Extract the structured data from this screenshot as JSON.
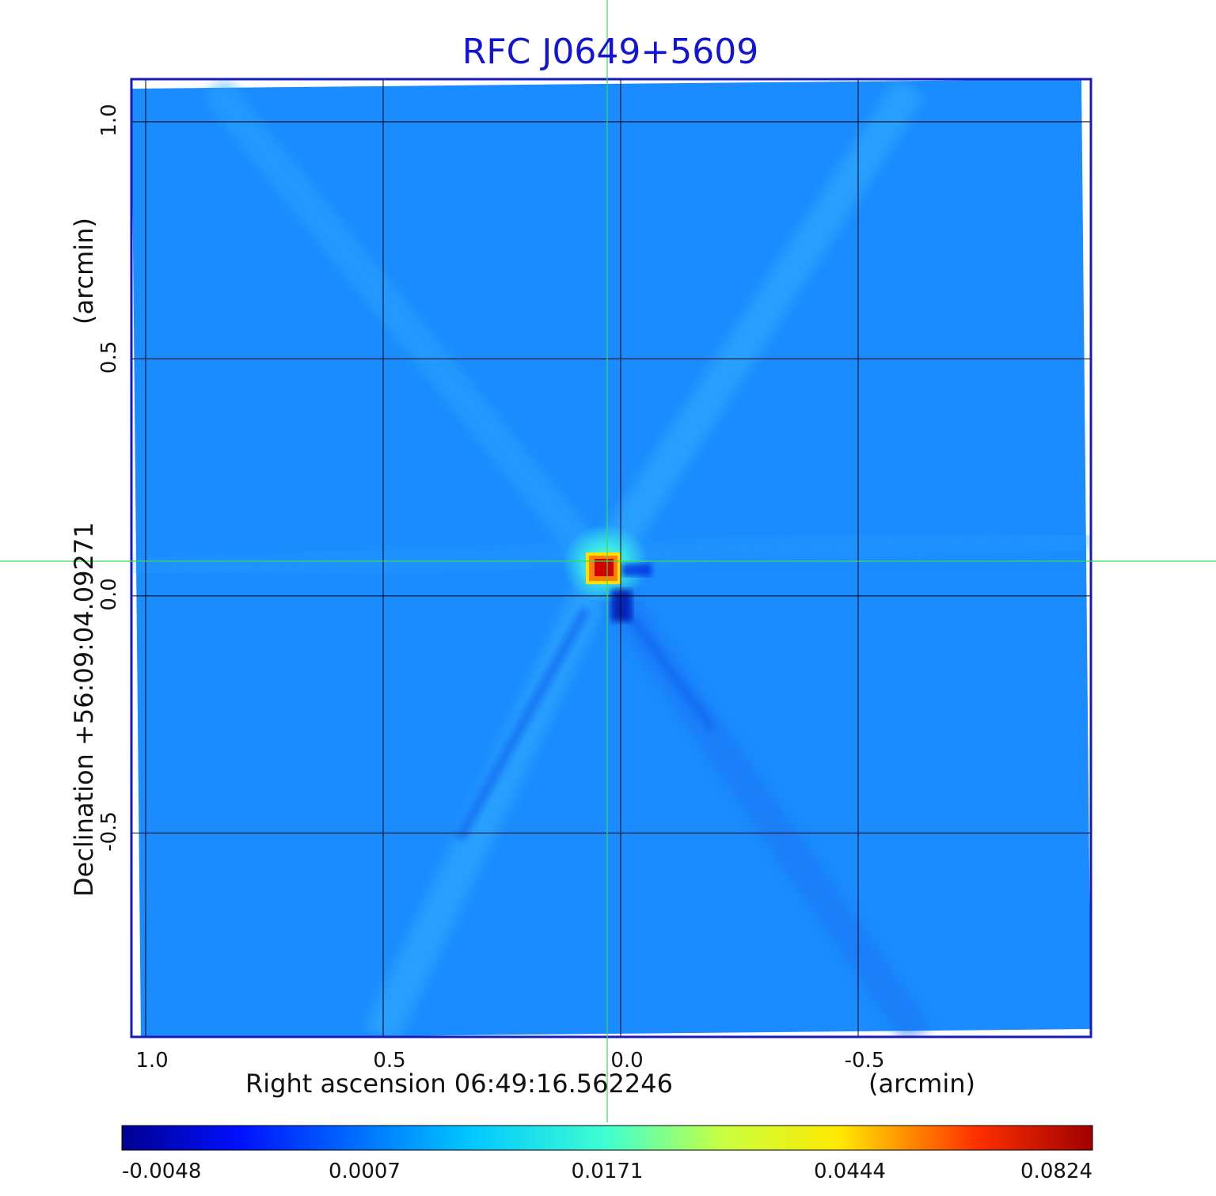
{
  "colors": {
    "title": "#1414d6",
    "frame": "#1a1ab8",
    "background_map": "#1a8cff",
    "grid": "#000000",
    "crosshair": "#33dd55"
  },
  "chart_data": {
    "type": "heatmap",
    "title": "RFC J0649+5609",
    "x_axis": {
      "label": "Right ascension  06:49:16.562246",
      "unit": "(arcmin)",
      "ticks": [
        "1.0",
        "0.5",
        "0.0",
        "-0.5"
      ],
      "tick_values": [
        1.0,
        0.5,
        0.0,
        -0.5
      ],
      "range": [
        1.03,
        -0.99
      ]
    },
    "y_axis": {
      "label": "Declination  +56:09:04.09271",
      "unit": "(arcmin)",
      "ticks": [
        "1.0",
        "0.5",
        "0.0",
        "-0.5"
      ],
      "tick_values": [
        1.0,
        0.5,
        0.0,
        -0.5
      ],
      "range": [
        -0.93,
        1.09
      ]
    },
    "grid": true,
    "crosshair": {
      "x": 0.03,
      "y": 0.07
    },
    "source_peak": {
      "x": 0.04,
      "y": 0.06,
      "value": 0.0824
    },
    "colorbar": {
      "ticks": [
        "-0.0048",
        "0.0007",
        "0.0171",
        "0.0444",
        "0.0824"
      ],
      "values": [
        -0.0048,
        0.0007,
        0.0171,
        0.0444,
        0.0824
      ],
      "colormap": "jet"
    }
  }
}
